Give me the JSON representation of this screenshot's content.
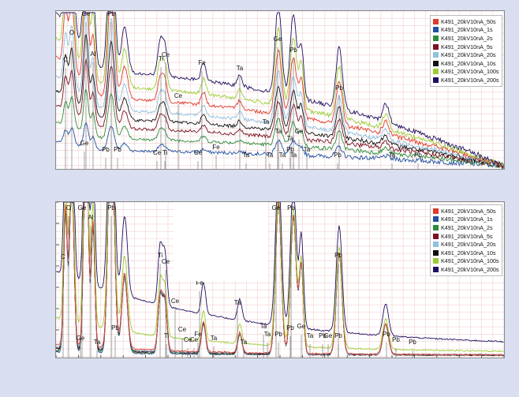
{
  "chart_data": [
    {
      "type": "line",
      "title": "",
      "xlabel": "",
      "ylabel": "",
      "grid": true,
      "legend_position": "top-right",
      "corner_text": "Same sp",
      "series": [
        {
          "name": "K491_20kV10nA_50s",
          "color": "#e03a2a"
        },
        {
          "name": "K491_20kV10nA_1s",
          "color": "#2050a0"
        },
        {
          "name": "K491_20kV10nA_2s",
          "color": "#2e8b3a"
        },
        {
          "name": "K491_20kV10nA_5s",
          "color": "#7a1020"
        },
        {
          "name": "K491_20kV10nA_20s",
          "color": "#8fc0e0"
        },
        {
          "name": "K491_20kV10nA_10s",
          "color": "#111111"
        },
        {
          "name": "K491_20kV10nA_100s",
          "color": "#9acd32"
        },
        {
          "name": "K491_20kV10nA_200s",
          "color": "#201060"
        }
      ],
      "element_labels": [
        "C",
        "O",
        "Ge",
        "Al",
        "Pb",
        "Ti",
        "Ce",
        "Fe",
        "Ta",
        "Ge",
        "Pb",
        "Ce",
        "Pb",
        "Ta",
        "Ta",
        "Ta",
        "Pb",
        "Ge",
        "Pb",
        "Ce",
        "Ti",
        "Ce",
        "Fe",
        "Ta",
        "Ta",
        "Ta",
        "Ta",
        "Ge",
        "Pb",
        "Ta",
        "Pb",
        "Ta",
        "Pb"
      ]
    },
    {
      "type": "line",
      "title": "",
      "xlabel": "",
      "ylabel": "",
      "grid": true,
      "legend_position": "top-right",
      "series": [
        {
          "name": "K491_20kV10nA_50s",
          "color": "#e03a2a"
        },
        {
          "name": "K491_20kV10nA_1s",
          "color": "#2050a0"
        },
        {
          "name": "K491_20kV10nA_2s",
          "color": "#2e8b3a"
        },
        {
          "name": "K491_20kV10nA_5s",
          "color": "#7a1020"
        },
        {
          "name": "K491_20kV10nA_20s",
          "color": "#8fc0e0"
        },
        {
          "name": "K491_20kV10nA_10s",
          "color": "#111111"
        },
        {
          "name": "K491_20kV10nA_100s",
          "color": "#9acd32"
        },
        {
          "name": "K491_20kV10nA_200s",
          "color": "#201060"
        }
      ],
      "element_labels": [
        "C",
        "O",
        "Ge",
        "Al",
        "Pb",
        "Ti",
        "Ce",
        "Fe",
        "Ta",
        "Ge",
        "Pb",
        "Ce",
        "Pb",
        "Ta",
        "Ti",
        "Ce",
        "Ce",
        "Ce",
        "Fe",
        "Ta",
        "Ta",
        "Pb",
        "Ge",
        "Ta",
        "Ge",
        "Pb",
        "Ta",
        "Pb",
        "Ta",
        "Pb",
        "Ge",
        "Pb",
        "Pb",
        "Pb",
        "Pb"
      ]
    }
  ]
}
